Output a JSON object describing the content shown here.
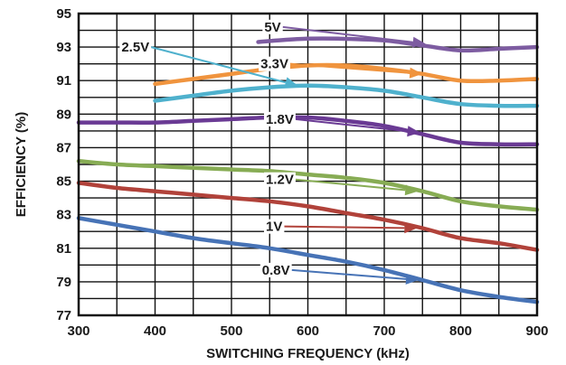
{
  "chart_data": {
    "type": "line",
    "xlabel": "SWITCHING FREQUENCY (kHz)",
    "ylabel": "EFFICIENCY (%)",
    "xlim": [
      300,
      900
    ],
    "ylim": [
      77,
      95
    ],
    "x_ticks": [
      300,
      400,
      500,
      600,
      700,
      800,
      900
    ],
    "y_ticks": [
      77,
      79,
      81,
      83,
      85,
      87,
      89,
      91,
      93,
      95
    ],
    "x_minor_step": 50,
    "y_minor_step": 1,
    "grid": true,
    "legend": "inline-arrow-labels",
    "series": [
      {
        "name": "5V",
        "color": "#7d5ca1",
        "x": [
          535,
          560,
          600,
          640,
          700,
          750,
          800,
          850,
          900
        ],
        "y": [
          93.3,
          93.4,
          93.5,
          93.5,
          93.4,
          93.1,
          92.8,
          92.9,
          93.0
        ],
        "label_at": [
          543,
          94.2
        ],
        "arrow_to": [
          754,
          93.2
        ]
      },
      {
        "name": "3.3V",
        "color": "#f0943e",
        "x": [
          400,
          450,
          500,
          550,
          600,
          650,
          700,
          750,
          800,
          850,
          900
        ],
        "y": [
          90.8,
          91.1,
          91.4,
          91.7,
          91.9,
          91.9,
          91.7,
          91.4,
          91.0,
          91.0,
          91.1
        ],
        "label_at": [
          538,
          92.0
        ],
        "arrow_to": [
          750,
          91.4
        ]
      },
      {
        "name": "2.5V",
        "color": "#4fb1cd",
        "x": [
          400,
          450,
          500,
          550,
          600,
          650,
          700,
          750,
          800,
          850,
          900
        ],
        "y": [
          89.8,
          90.1,
          90.4,
          90.6,
          90.7,
          90.6,
          90.4,
          90.0,
          89.6,
          89.5,
          89.5
        ],
        "label_at": [
          356,
          93.0
        ],
        "arrow_to": [
          587,
          90.7
        ]
      },
      {
        "name": "1.8V",
        "color": "#6a3a94",
        "x": [
          300,
          350,
          400,
          450,
          500,
          550,
          600,
          650,
          700,
          750,
          800,
          850,
          900
        ],
        "y": [
          88.5,
          88.5,
          88.5,
          88.6,
          88.7,
          88.8,
          88.8,
          88.6,
          88.3,
          87.8,
          87.3,
          87.2,
          87.2
        ],
        "label_at": [
          545,
          88.7
        ],
        "arrow_to": [
          747,
          87.9
        ]
      },
      {
        "name": "1.2V",
        "color": "#87ac54",
        "x": [
          300,
          350,
          400,
          450,
          500,
          550,
          600,
          650,
          700,
          750,
          800,
          850,
          900
        ],
        "y": [
          86.2,
          86.0,
          85.9,
          85.8,
          85.7,
          85.6,
          85.4,
          85.2,
          84.9,
          84.4,
          83.8,
          83.5,
          83.3
        ],
        "label_at": [
          545,
          85.1
        ],
        "arrow_to": [
          744,
          84.4
        ]
      },
      {
        "name": "1V",
        "color": "#b1423a",
        "x": [
          300,
          350,
          400,
          450,
          500,
          550,
          600,
          650,
          700,
          750,
          800,
          850,
          900
        ],
        "y": [
          84.9,
          84.6,
          84.4,
          84.2,
          84.0,
          83.8,
          83.5,
          83.1,
          82.7,
          82.2,
          81.6,
          81.3,
          80.9
        ],
        "label_at": [
          545,
          82.3
        ],
        "arrow_to": [
          743,
          82.2
        ]
      },
      {
        "name": "0.8V",
        "color": "#4773b6",
        "x": [
          300,
          350,
          400,
          450,
          500,
          550,
          600,
          650,
          700,
          750,
          800,
          850,
          900
        ],
        "y": [
          82.8,
          82.4,
          82.0,
          81.6,
          81.3,
          81.0,
          80.6,
          80.2,
          79.7,
          79.1,
          78.5,
          78.1,
          77.8
        ],
        "label_at": [
          540,
          79.7
        ],
        "arrow_to": [
          745,
          79.1
        ]
      }
    ]
  }
}
